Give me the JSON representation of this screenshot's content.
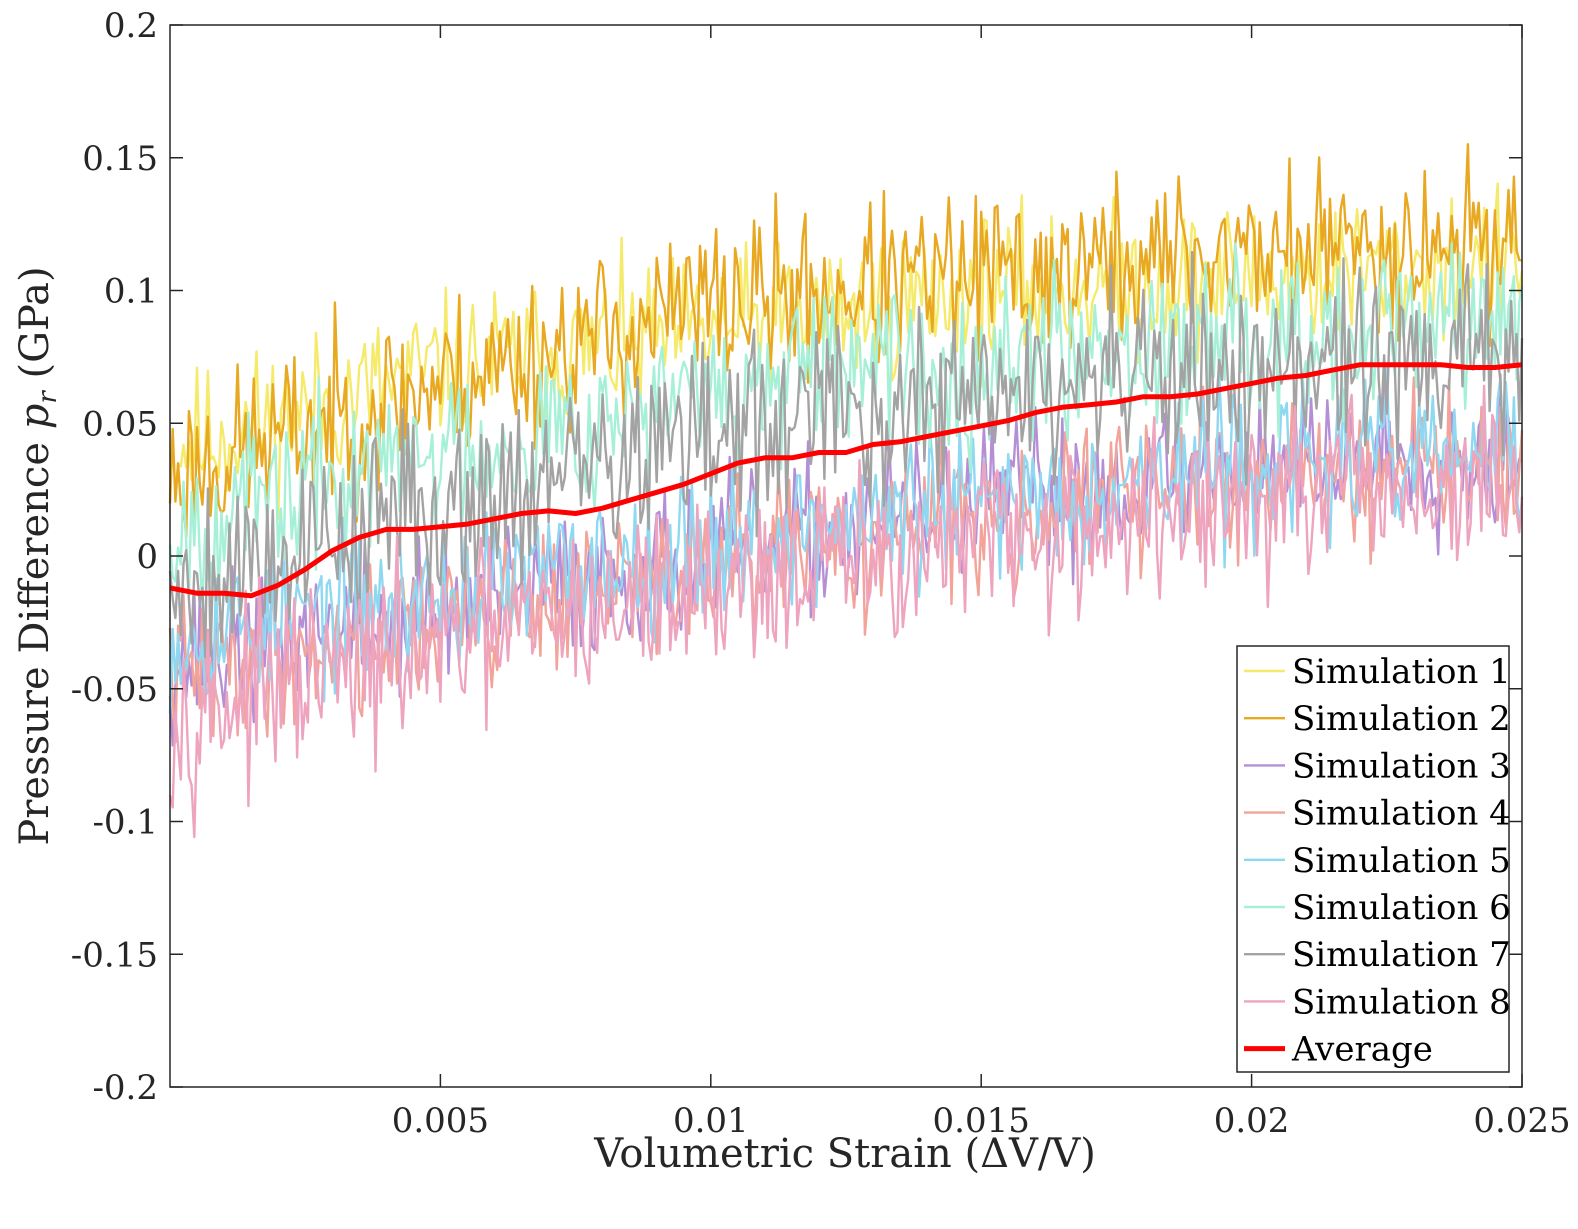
{
  "chart_data": {
    "type": "line",
    "xlabel": "Volumetric Strain (ΔV/V)",
    "ylabel_prefix": "Pressure Difference ",
    "ylabel_symbol": "p",
    "ylabel_subscript": "r",
    "ylabel_suffix": " (GPa)",
    "xlim": [
      0,
      0.025
    ],
    "ylim": [
      -0.2,
      0.2
    ],
    "xticks": [
      0.005,
      0.01,
      0.015,
      0.02,
      0.025
    ],
    "xtick_labels": [
      "0.005",
      "0.01",
      "0.015",
      "0.02",
      "0.025"
    ],
    "yticks": [
      -0.2,
      -0.15,
      -0.1,
      -0.05,
      0,
      0.05,
      0.1,
      0.15,
      0.2
    ],
    "ytick_labels": [
      "-0.2",
      "-0.15",
      "-0.1",
      "-0.05",
      "0",
      "0.05",
      "0.1",
      "0.15",
      "0.2"
    ],
    "grid": false,
    "legend_position": "bottom-right",
    "series": [
      {
        "name": "Simulation 1",
        "color": "#f5ea6a",
        "trend": [
          [
            0,
            0.04
          ],
          [
            0.005,
            0.07
          ],
          [
            0.01,
            0.085
          ],
          [
            0.015,
            0.1
          ],
          [
            0.02,
            0.105
          ],
          [
            0.025,
            0.11
          ]
        ],
        "noise": 0.022,
        "seed": 11
      },
      {
        "name": "Simulation 2",
        "color": "#e8a821",
        "trend": [
          [
            0,
            0.03
          ],
          [
            0.005,
            0.065
          ],
          [
            0.01,
            0.095
          ],
          [
            0.015,
            0.105
          ],
          [
            0.02,
            0.115
          ],
          [
            0.025,
            0.12
          ]
        ],
        "noise": 0.025,
        "seed": 23
      },
      {
        "name": "Simulation 3",
        "color": "#b58fd6",
        "trend": [
          [
            0,
            -0.04
          ],
          [
            0.005,
            -0.02
          ],
          [
            0.01,
            0.0
          ],
          [
            0.015,
            0.02
          ],
          [
            0.02,
            0.035
          ],
          [
            0.025,
            0.04
          ]
        ],
        "noise": 0.022,
        "seed": 37
      },
      {
        "name": "Simulation 4",
        "color": "#f2a39a",
        "trend": [
          [
            0,
            -0.045
          ],
          [
            0.005,
            -0.025
          ],
          [
            0.01,
            -0.005
          ],
          [
            0.015,
            0.015
          ],
          [
            0.02,
            0.03
          ],
          [
            0.025,
            0.035
          ]
        ],
        "noise": 0.022,
        "seed": 41
      },
      {
        "name": "Simulation 5",
        "color": "#8ed8f2",
        "trend": [
          [
            0,
            -0.03
          ],
          [
            0.005,
            -0.015
          ],
          [
            0.01,
            0.005
          ],
          [
            0.015,
            0.02
          ],
          [
            0.02,
            0.035
          ],
          [
            0.025,
            0.04
          ]
        ],
        "noise": 0.022,
        "seed": 53
      },
      {
        "name": "Simulation 6",
        "color": "#a6f0d8",
        "trend": [
          [
            0,
            0.01
          ],
          [
            0.005,
            0.04
          ],
          [
            0.01,
            0.06
          ],
          [
            0.015,
            0.075
          ],
          [
            0.02,
            0.085
          ],
          [
            0.025,
            0.09
          ]
        ],
        "noise": 0.024,
        "seed": 67
      },
      {
        "name": "Simulation 7",
        "color": "#a3a3a3",
        "trend": [
          [
            0,
            -0.01
          ],
          [
            0.005,
            0.02
          ],
          [
            0.01,
            0.045
          ],
          [
            0.015,
            0.06
          ],
          [
            0.02,
            0.07
          ],
          [
            0.025,
            0.075
          ]
        ],
        "noise": 0.028,
        "seed": 79
      },
      {
        "name": "Simulation 8",
        "color": "#eea4bf",
        "trend": [
          [
            0,
            -0.06
          ],
          [
            0.005,
            -0.035
          ],
          [
            0.01,
            -0.01
          ],
          [
            0.015,
            0.005
          ],
          [
            0.02,
            0.02
          ],
          [
            0.025,
            0.025
          ]
        ],
        "noise": 0.026,
        "seed": 97
      }
    ],
    "average": {
      "name": "Average",
      "color": "#ff0000",
      "x": [
        0,
        0.0005,
        0.001,
        0.0015,
        0.002,
        0.0025,
        0.003,
        0.0035,
        0.004,
        0.0045,
        0.005,
        0.0055,
        0.006,
        0.0065,
        0.007,
        0.0075,
        0.008,
        0.0085,
        0.009,
        0.0095,
        0.01,
        0.0105,
        0.011,
        0.0115,
        0.012,
        0.0125,
        0.013,
        0.0135,
        0.014,
        0.0145,
        0.015,
        0.0155,
        0.016,
        0.0165,
        0.017,
        0.0175,
        0.018,
        0.0185,
        0.019,
        0.0195,
        0.02,
        0.0205,
        0.021,
        0.0215,
        0.022,
        0.0225,
        0.023,
        0.0235,
        0.024,
        0.0245,
        0.025
      ],
      "y": [
        -0.012,
        -0.014,
        -0.014,
        -0.015,
        -0.011,
        -0.005,
        0.002,
        0.007,
        0.01,
        0.01,
        0.011,
        0.012,
        0.014,
        0.016,
        0.017,
        0.016,
        0.018,
        0.021,
        0.024,
        0.027,
        0.031,
        0.035,
        0.037,
        0.037,
        0.039,
        0.039,
        0.042,
        0.043,
        0.045,
        0.047,
        0.049,
        0.051,
        0.054,
        0.056,
        0.057,
        0.058,
        0.06,
        0.06,
        0.061,
        0.063,
        0.065,
        0.067,
        0.068,
        0.07,
        0.072,
        0.072,
        0.072,
        0.072,
        0.071,
        0.071,
        0.072
      ]
    }
  }
}
